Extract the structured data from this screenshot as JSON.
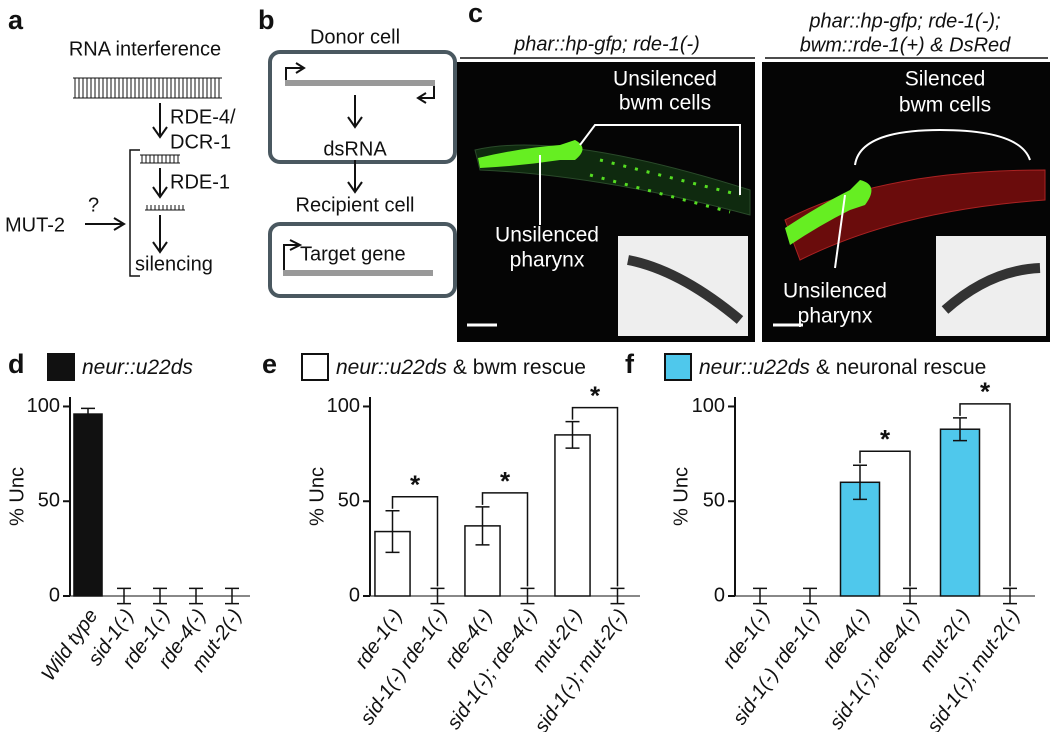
{
  "panel_a": {
    "label": "a",
    "title": "RNA interference",
    "enzyme_1": [
      "RDE-4/",
      "DCR-1"
    ],
    "enzyme_2": "RDE-1",
    "regulator": "MUT-2",
    "unknown": "?",
    "outcome": "silencing"
  },
  "panel_b": {
    "label": "b",
    "donor": "Donor cell",
    "molecule": "dsRNA",
    "recipient": "Recipient cell",
    "target": "Target gene"
  },
  "panel_c": {
    "label": "c",
    "left": {
      "title": "phar::hp-gfp; rde-1(-)",
      "bracket": [
        "Unsilenced",
        "bwm cells"
      ],
      "pointer": [
        "Unsilenced",
        "pharynx"
      ]
    },
    "right": {
      "title": [
        "phar::hp-gfp; rde-1(-);",
        "bwm::rde-1(+) & DsRed"
      ],
      "bracket": [
        "Silenced",
        "bwm cells"
      ],
      "pointer": [
        "Unsilenced",
        "pharynx"
      ]
    }
  },
  "chart_data": [
    {
      "type": "bar",
      "label": "d",
      "legend": [
        "neur::u22ds"
      ],
      "ylabel": "% Unc",
      "color": "#111111",
      "categories": [
        "Wild type",
        "sid-1(-)",
        "rde-1(-)",
        "rde-4(-)",
        "mut-2(-)"
      ],
      "values": [
        96,
        0,
        0,
        0,
        0
      ],
      "errors": [
        3,
        4,
        4,
        4,
        4
      ],
      "ylim": [
        0,
        105
      ],
      "yticks": [
        0,
        50,
        100
      ],
      "annotations": []
    },
    {
      "type": "bar",
      "label": "e",
      "legend": [
        "neur::u22ds",
        "& bwm rescue"
      ],
      "ylabel": "% Unc",
      "color": "#ffffff",
      "categories": [
        "rde-1(-)",
        "sid-1(-) rde-1(-)",
        "rde-4(-)",
        "sid-1(-); rde-4(-)",
        "mut-2(-)",
        "sid-1(-); mut-2(-)"
      ],
      "values": [
        34,
        0,
        37,
        0,
        85,
        0
      ],
      "errors": [
        11,
        4,
        10,
        4,
        7,
        4
      ],
      "ylim": [
        0,
        105
      ],
      "yticks": [
        0,
        50,
        100
      ],
      "annotations": [
        {
          "text": "*",
          "between": [
            0,
            1
          ]
        },
        {
          "text": "*",
          "between": [
            2,
            3
          ]
        },
        {
          "text": "*",
          "between": [
            4,
            5
          ]
        }
      ]
    },
    {
      "type": "bar",
      "label": "f",
      "legend": [
        "neur::u22ds",
        "& neuronal rescue"
      ],
      "ylabel": "% Unc",
      "color": "#4fc8ec",
      "categories": [
        "rde-1(-)",
        "sid-1(-) rde-1(-)",
        "rde-4(-)",
        "sid-1(-); rde-4(-)",
        "mut-2(-)",
        "sid-1(-); mut-2(-)"
      ],
      "values": [
        0,
        0,
        60,
        0,
        88,
        0
      ],
      "errors": [
        4,
        4,
        9,
        4,
        6,
        4
      ],
      "ylim": [
        0,
        105
      ],
      "yticks": [
        0,
        50,
        100
      ],
      "annotations": [
        {
          "text": "*",
          "between": [
            2,
            3
          ]
        },
        {
          "text": "*",
          "between": [
            4,
            5
          ]
        }
      ]
    }
  ]
}
